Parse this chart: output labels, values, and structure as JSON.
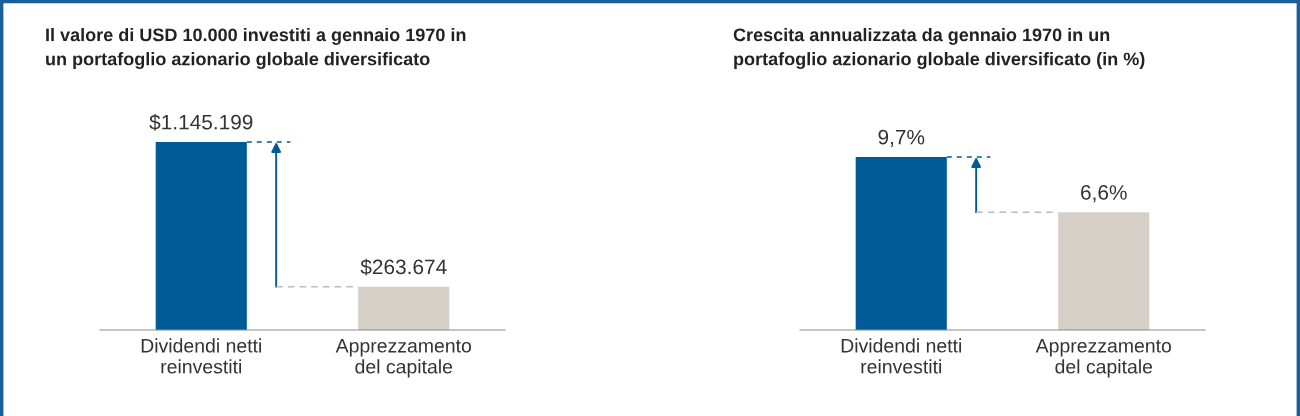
{
  "chart_data": [
    {
      "type": "bar",
      "title": "Il valore di USD 10.000 investiti a gennaio 1970 in\nun portafoglio azionario globale diversificato",
      "categories": [
        "Dividendi netti\nreinvestiti",
        "Apprezzamento\ndel capitale"
      ],
      "values": [
        1145199,
        263674
      ],
      "colors": [
        "#005b97",
        "#d6cfc7"
      ],
      "value_labels": [
        "$1.145.199",
        "$263.674"
      ]
    },
    {
      "type": "bar",
      "title": "Crescita annualizzata da gennaio 1970 in un\nportafoglio azionario globale diversificato (in %)",
      "categories": [
        "Dividendi netti\nreinvestiti",
        "Apprezzamento\ndel capitale"
      ],
      "values": [
        9.7,
        6.6
      ],
      "colors": [
        "#005b97",
        "#d6cfc7"
      ],
      "value_labels": [
        "9,7%",
        "6,6%"
      ]
    }
  ]
}
